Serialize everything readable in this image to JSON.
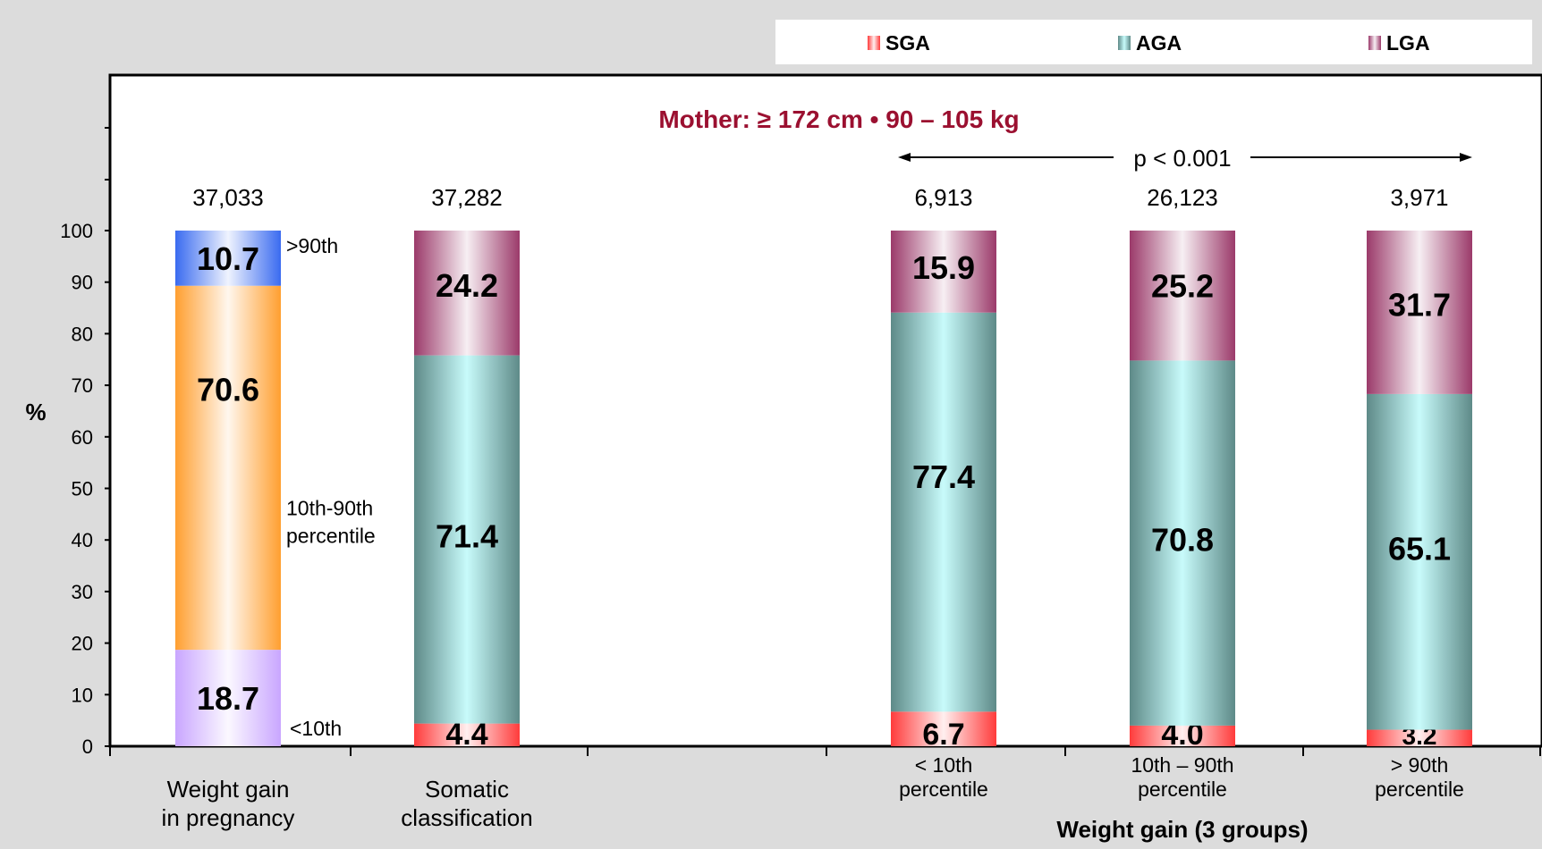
{
  "chart_data": {
    "type": "bar",
    "stacked": true,
    "title": "Mother: ≥ 172 cm  •  90 – 105 kg",
    "ylabel": "%",
    "ylim": [
      0,
      100
    ],
    "yticks": [
      "0",
      "10",
      "20",
      "30",
      "40",
      "50",
      "60",
      "70",
      "80",
      "90",
      "100"
    ],
    "legend": {
      "placement": "top-right",
      "entries": [
        {
          "name": "SGA",
          "color": "#ff3b3b"
        },
        {
          "name": "AGA",
          "color": "#5e8a88"
        },
        {
          "name": "LGA",
          "color": "#9b3a6a"
        }
      ]
    },
    "p_value": "p < 0.001",
    "group_label": "Weight gain (3 groups)",
    "bars": [
      {
        "id": "wg",
        "category": [
          "Weight gain",
          "in pregnancy"
        ],
        "n": "37,033",
        "segments": [
          {
            "name": "<10th",
            "value": 18.7,
            "label": "18.7",
            "color": "#c9a6ff",
            "side_label": "<10th"
          },
          {
            "name": "10th-90th percentile",
            "value": 70.6,
            "label": "70.6",
            "color": "#ff9f30",
            "side_label": [
              "10th-90th",
              "percentile"
            ]
          },
          {
            "name": ">90th",
            "value": 10.7,
            "label": "10.7",
            "color": "#3a6bf0",
            "side_label": ">90th"
          }
        ]
      },
      {
        "id": "som",
        "category": [
          "Somatic",
          "classification"
        ],
        "n": "37,282",
        "segments": [
          {
            "name": "SGA",
            "value": 4.4,
            "label": "4.4",
            "color": "#ff3b3b"
          },
          {
            "name": "AGA",
            "value": 71.4,
            "label": "71.4",
            "color": "#5e8a88"
          },
          {
            "name": "LGA",
            "value": 24.2,
            "label": "24.2",
            "color": "#9b3a6a"
          }
        ]
      },
      {
        "id": "lt10",
        "category": [
          "< 10th",
          "percentile"
        ],
        "n": "6,913",
        "segments": [
          {
            "name": "SGA",
            "value": 6.7,
            "label": "6.7",
            "color": "#ff3b3b"
          },
          {
            "name": "AGA",
            "value": 77.4,
            "label": "77.4",
            "color": "#5e8a88"
          },
          {
            "name": "LGA",
            "value": 15.9,
            "label": "15.9",
            "color": "#9b3a6a"
          }
        ]
      },
      {
        "id": "mid",
        "category": [
          "10th – 90th",
          "percentile"
        ],
        "n": "26,123",
        "segments": [
          {
            "name": "SGA",
            "value": 4.0,
            "label": "4.0",
            "color": "#ff3b3b"
          },
          {
            "name": "AGA",
            "value": 70.8,
            "label": "70.8",
            "color": "#5e8a88"
          },
          {
            "name": "LGA",
            "value": 25.2,
            "label": "25.2",
            "color": "#9b3a6a"
          }
        ]
      },
      {
        "id": "gt90",
        "category": [
          "> 90th",
          "percentile"
        ],
        "n": "3,971",
        "segments": [
          {
            "name": "SGA",
            "value": 3.2,
            "label": "3.2",
            "color": "#ff3b3b"
          },
          {
            "name": "AGA",
            "value": 65.1,
            "label": "65.1",
            "color": "#5e8a88"
          },
          {
            "name": "LGA",
            "value": 31.7,
            "label": "31.7",
            "color": "#9b3a6a"
          }
        ]
      }
    ]
  }
}
